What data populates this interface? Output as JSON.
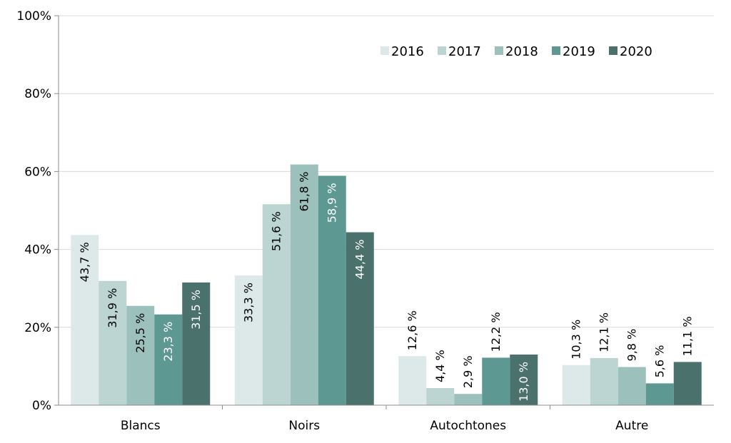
{
  "chart_data": {
    "type": "bar",
    "title": "",
    "xlabel": "",
    "ylabel": "",
    "categories": [
      "Blancs",
      "Noirs",
      "Autochtones",
      "Autre"
    ],
    "series": [
      {
        "name": "2016",
        "color": "#dde9e8",
        "values": [
          43.7,
          33.3,
          12.6,
          10.3
        ],
        "labels": [
          "43,7 %",
          "33,3 %",
          "12,6 %",
          "10,3 %"
        ]
      },
      {
        "name": "2017",
        "color": "#bcd5d2",
        "values": [
          31.9,
          51.6,
          4.4,
          12.1
        ],
        "labels": [
          "31,9 %",
          "51,6 %",
          "4,4 %",
          "12,1 %"
        ]
      },
      {
        "name": "2018",
        "color": "#9cc1bd",
        "values": [
          25.5,
          61.8,
          2.9,
          9.8
        ],
        "labels": [
          "25,5 %",
          "61,8 %",
          "2,9 %",
          "9,8 %"
        ]
      },
      {
        "name": "2019",
        "color": "#5e9892",
        "values": [
          23.3,
          58.9,
          12.2,
          5.6
        ],
        "labels": [
          "23,3 %",
          "58,9 %",
          "12,2 %",
          "5,6 %"
        ]
      },
      {
        "name": "2020",
        "color": "#4a716c",
        "values": [
          31.5,
          44.4,
          13.0,
          11.1
        ],
        "labels": [
          "31,5 %",
          "44,4 %",
          "13,0 %",
          "11,1 %"
        ]
      }
    ],
    "ylim": [
      0,
      100
    ],
    "yticks": [
      0,
      20,
      40,
      60,
      80,
      100
    ],
    "ytick_labels": [
      "0%",
      "20%",
      "40%",
      "60%",
      "80%",
      "100%"
    ],
    "grid": true,
    "legend_position": "top-right"
  }
}
